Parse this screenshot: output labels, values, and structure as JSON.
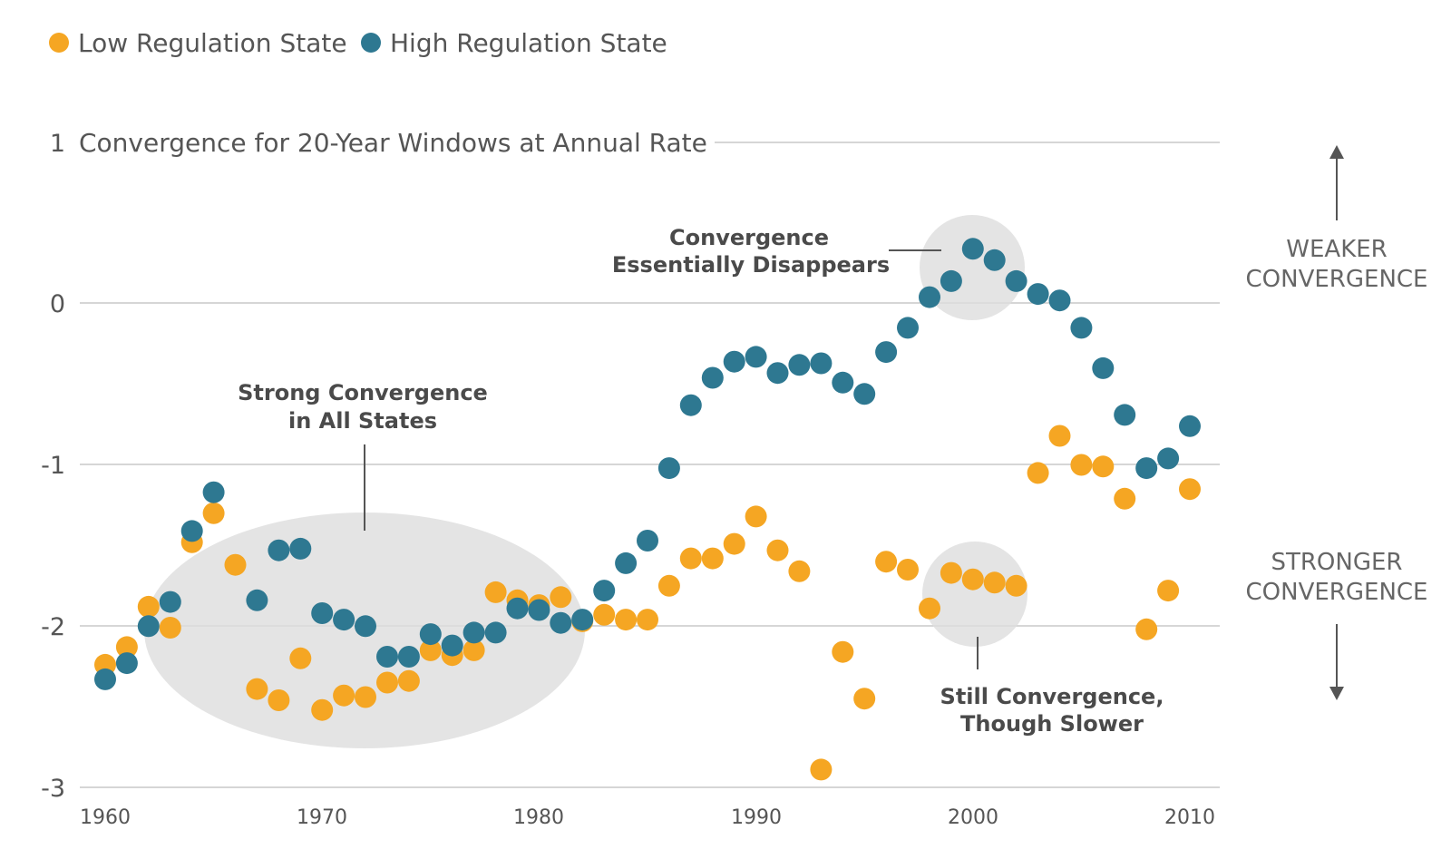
{
  "legend": [
    {
      "label": "Low Regulation State",
      "color": "#F5A623"
    },
    {
      "label": "High Regulation State",
      "color": "#2E7891"
    }
  ],
  "side_labels": {
    "top": [
      "WEAKER",
      "CONVERGENCE"
    ],
    "bottom": [
      "STRONGER",
      "CONVERGENCE"
    ]
  },
  "annotations": {
    "strong": [
      "Strong Convergence",
      "in All States"
    ],
    "disappears": [
      "Convergence",
      "Essentially Disappears"
    ],
    "still": [
      "Still Convergence,",
      "Though Slower"
    ]
  },
  "chart_data": {
    "type": "scatter",
    "title": "Convergence for 20-Year Windows at Annual Rate",
    "xlabel": "",
    "ylabel": "",
    "xlim": [
      1960,
      2010
    ],
    "ylim": [
      -3,
      1
    ],
    "x_ticks": [
      "1960",
      "1970",
      "1980",
      "1990",
      "2000",
      "2010"
    ],
    "y_ticks": [
      "1",
      "0",
      "-1",
      "-2",
      "-3"
    ],
    "grid": true,
    "legend_position": "top-left",
    "series": [
      {
        "name": "Low Regulation State",
        "color": "#F5A623",
        "x": [
          1960,
          1961,
          1962,
          1963,
          1964,
          1965,
          1966,
          1967,
          1968,
          1969,
          1970,
          1971,
          1972,
          1973,
          1974,
          1975,
          1976,
          1977,
          1978,
          1979,
          1980,
          1981,
          1982,
          1983,
          1984,
          1985,
          1986,
          1987,
          1988,
          1989,
          1990,
          1991,
          1992,
          1993,
          1994,
          1995,
          1996,
          1997,
          1998,
          1999,
          2000,
          2001,
          2002,
          2003,
          2004,
          2005,
          2006,
          2007,
          2008,
          2009,
          2010
        ],
        "y": [
          -2.24,
          -2.13,
          -1.88,
          -2.01,
          -1.48,
          -1.3,
          -1.62,
          -2.39,
          -2.46,
          -2.2,
          -2.52,
          -2.43,
          -2.44,
          -2.35,
          -2.34,
          -2.15,
          -2.18,
          -2.15,
          -1.79,
          -1.84,
          -1.87,
          -1.82,
          -1.97,
          -1.93,
          -1.96,
          -1.96,
          -1.75,
          -1.58,
          -1.58,
          -1.49,
          -1.32,
          -1.53,
          -1.66,
          -2.89,
          -2.16,
          -2.45,
          -1.6,
          -1.65,
          -1.89,
          -1.67,
          -1.71,
          -1.73,
          -1.75,
          -1.05,
          -0.82,
          -1.0,
          -1.01,
          -1.21,
          -2.02,
          -1.78,
          -1.15
        ]
      },
      {
        "name": "High Regulation State",
        "color": "#2E7891",
        "x": [
          1960,
          1961,
          1962,
          1963,
          1964,
          1965,
          1967,
          1968,
          1969,
          1970,
          1971,
          1972,
          1973,
          1974,
          1975,
          1976,
          1977,
          1978,
          1979,
          1980,
          1981,
          1982,
          1983,
          1984,
          1985,
          1986,
          1987,
          1988,
          1989,
          1990,
          1991,
          1992,
          1993,
          1994,
          1995,
          1996,
          1997,
          1998,
          1999,
          2000,
          2001,
          2002,
          2003,
          2004,
          2005,
          2006,
          2007,
          2008,
          2009,
          2010
        ],
        "y": [
          -2.33,
          -2.23,
          -2.0,
          -1.85,
          -1.41,
          -1.17,
          -1.84,
          -1.53,
          -1.52,
          -1.92,
          -1.96,
          -2.0,
          -2.19,
          -2.19,
          -2.05,
          -2.12,
          -2.04,
          -2.04,
          -1.89,
          -1.9,
          -1.98,
          -1.96,
          -1.78,
          -1.61,
          -1.47,
          -1.02,
          -0.63,
          -0.46,
          -0.36,
          -0.33,
          -0.43,
          -0.38,
          -0.37,
          -0.49,
          -0.56,
          -0.3,
          -0.15,
          0.04,
          0.14,
          0.34,
          0.27,
          0.14,
          0.06,
          0.02,
          -0.15,
          -0.4,
          -0.69,
          -1.02,
          -0.96,
          -0.76
        ]
      }
    ]
  }
}
